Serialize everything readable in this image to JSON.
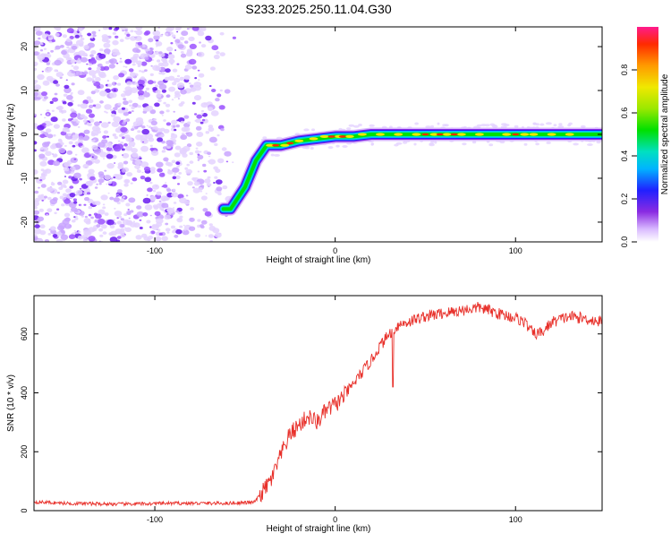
{
  "title": "S233.2025.250.11.04.G30",
  "chart_data": [
    {
      "type": "heatmap",
      "xlabel": "Height of straight line (km)",
      "ylabel": "Frequency (Hz)",
      "xlim": [
        -167,
        148
      ],
      "ylim": [
        -24.5,
        24.5
      ],
      "x_ticks": [
        -100,
        0,
        100
      ],
      "y_ticks": [
        -20,
        -10,
        0,
        10,
        20
      ],
      "colorbar": {
        "label": "Normalized spectral amplitude",
        "range": [
          0,
          1
        ],
        "ticks": [
          0.0,
          0.2,
          0.4,
          0.6,
          0.8
        ]
      },
      "ridge": {
        "x": [
          -62,
          -58,
          -50,
          -44,
          -38,
          -30,
          -20,
          -10,
          0,
          10,
          20,
          30,
          40,
          60,
          80,
          100,
          120,
          148
        ],
        "y": [
          -17,
          -17,
          -12,
          -6,
          -2.5,
          -2.5,
          -1.5,
          -1,
          -0.5,
          -0.5,
          0,
          0,
          0,
          0,
          0,
          0,
          0,
          0
        ]
      },
      "noise_region": {
        "x": [
          -167,
          -55
        ],
        "y": [
          -24.5,
          24.5
        ]
      }
    },
    {
      "type": "line",
      "xlabel": "Height of straight line (km)",
      "ylabel": "SNR (10 * v/v)",
      "xlim": [
        -167,
        148
      ],
      "ylim": [
        0,
        730
      ],
      "x_ticks": [
        -100,
        0,
        100
      ],
      "y_ticks": [
        0,
        200,
        400,
        600
      ],
      "series": [
        {
          "color": "#e8302a",
          "x": [
            -167,
            -150,
            -120,
            -90,
            -60,
            -45,
            -40,
            -35,
            -30,
            -25,
            -20,
            -15,
            -10,
            -5,
            0,
            5,
            10,
            15,
            20,
            25,
            30,
            35,
            40,
            45,
            50,
            60,
            70,
            80,
            90,
            100,
            105,
            110,
            115,
            120,
            130,
            140,
            148
          ],
          "y": [
            30,
            25,
            22,
            25,
            25,
            28,
            65,
            110,
            190,
            260,
            290,
            320,
            300,
            340,
            360,
            390,
            430,
            470,
            510,
            560,
            600,
            630,
            640,
            650,
            660,
            670,
            680,
            690,
            670,
            655,
            640,
            600,
            605,
            640,
            660,
            650,
            640
          ]
        }
      ]
    }
  ]
}
